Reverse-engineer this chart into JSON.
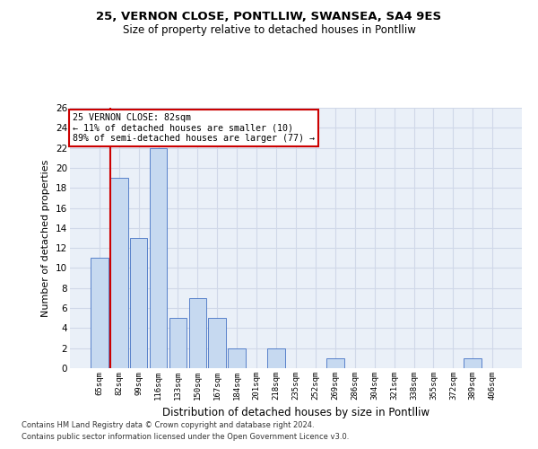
{
  "title1": "25, VERNON CLOSE, PONTLLIW, SWANSEA, SA4 9ES",
  "title2": "Size of property relative to detached houses in Pontlliw",
  "xlabel": "Distribution of detached houses by size in Pontlliw",
  "ylabel": "Number of detached properties",
  "categories": [
    "65sqm",
    "82sqm",
    "99sqm",
    "116sqm",
    "133sqm",
    "150sqm",
    "167sqm",
    "184sqm",
    "201sqm",
    "218sqm",
    "235sqm",
    "252sqm",
    "269sqm",
    "286sqm",
    "304sqm",
    "321sqm",
    "338sqm",
    "355sqm",
    "372sqm",
    "389sqm",
    "406sqm"
  ],
  "values": [
    11,
    19,
    13,
    22,
    5,
    7,
    5,
    2,
    0,
    2,
    0,
    0,
    1,
    0,
    0,
    0,
    0,
    0,
    0,
    1,
    0
  ],
  "bar_color": "#c6d9f0",
  "bar_edge_color": "#4472c4",
  "highlight_index": 1,
  "red_line_index": 1,
  "annotation_text": "25 VERNON CLOSE: 82sqm\n← 11% of detached houses are smaller (10)\n89% of semi-detached houses are larger (77) →",
  "annotation_box_color": "#ffffff",
  "annotation_box_edge": "#cc0000",
  "ylim": [
    0,
    26
  ],
  "yticks": [
    0,
    2,
    4,
    6,
    8,
    10,
    12,
    14,
    16,
    18,
    20,
    22,
    24,
    26
  ],
  "grid_color": "#d0d8e8",
  "bg_color": "#eaf0f8",
  "footnote1": "Contains HM Land Registry data © Crown copyright and database right 2024.",
  "footnote2": "Contains public sector information licensed under the Open Government Licence v3.0."
}
